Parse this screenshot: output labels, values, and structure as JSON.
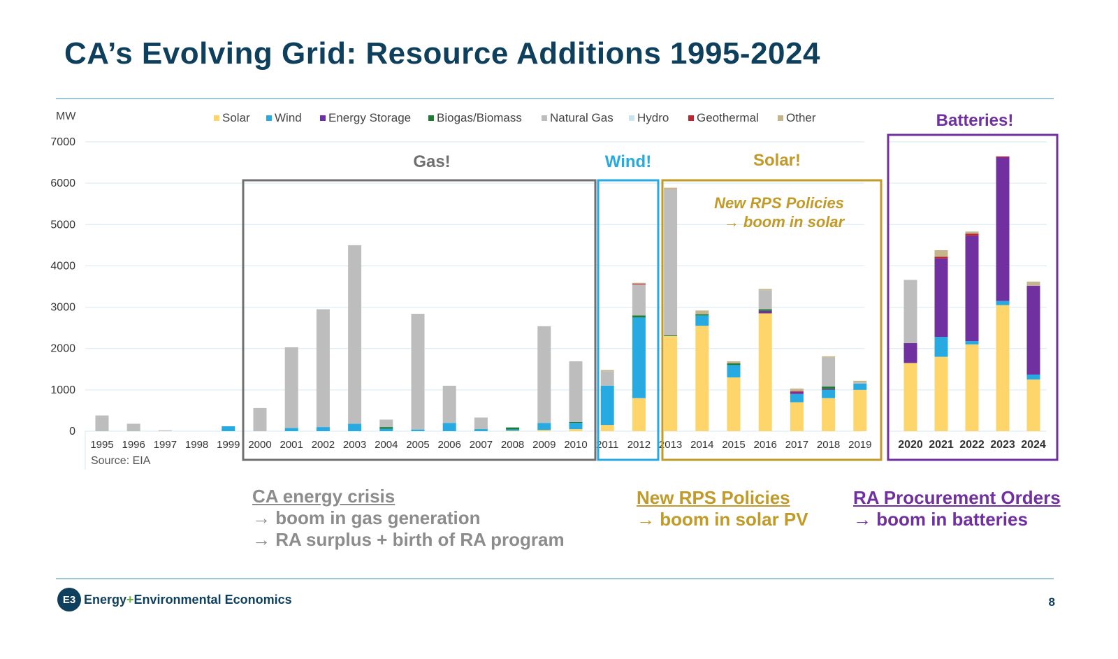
{
  "title": "CA’s Evolving Grid: Resource Additions 1995-2024",
  "footer": {
    "company_a": "Energy",
    "plus": "+",
    "company_b": "Environmental Economics",
    "logo_text": "E3",
    "page_number": "8"
  },
  "annotations": {
    "gas": {
      "head": "CA energy crisis",
      "line1": "→ boom in gas generation",
      "line2": "→ RA surplus + birth of RA program"
    },
    "solar": {
      "head": "New RPS Policies",
      "line1": "→ boom in solar PV"
    },
    "batteries": {
      "head": "RA Procurement Orders",
      "line1": "→ boom in batteries"
    }
  },
  "chart_data": {
    "type": "bar",
    "stacked": true,
    "title": "",
    "ylabel": "MW",
    "ylim": [
      0,
      7000
    ],
    "yticks": [
      0,
      1000,
      2000,
      3000,
      4000,
      5000,
      6000,
      7000
    ],
    "source": "Source: EIA",
    "categories": [
      "1995",
      "1996",
      "1997",
      "1998",
      "1999",
      "2000",
      "2001",
      "2002",
      "2003",
      "2004",
      "2005",
      "2006",
      "2007",
      "2008",
      "2009",
      "2010",
      "2011",
      "2012",
      "2013",
      "2014",
      "2015",
      "2016",
      "2017",
      "2018",
      "2019",
      "2020",
      "2021",
      "2022",
      "2023",
      "2024"
    ],
    "series": [
      {
        "name": "Solar",
        "color": "#fdd56b",
        "values": [
          0,
          0,
          0,
          0,
          0,
          0,
          0,
          0,
          0,
          0,
          0,
          0,
          0,
          10,
          30,
          50,
          150,
          800,
          2300,
          2550,
          1300,
          2850,
          700,
          800,
          1000,
          1650,
          1800,
          2100,
          3050,
          1250
        ]
      },
      {
        "name": "Wind",
        "color": "#27aae1",
        "values": [
          0,
          0,
          0,
          0,
          120,
          0,
          80,
          100,
          180,
          60,
          40,
          200,
          50,
          30,
          170,
          150,
          950,
          1950,
          0,
          250,
          300,
          0,
          200,
          200,
          150,
          0,
          480,
          80,
          100,
          120
        ]
      },
      {
        "name": "Energy Storage",
        "color": "#7030a0",
        "values": [
          0,
          0,
          0,
          0,
          0,
          0,
          0,
          0,
          0,
          0,
          0,
          0,
          0,
          0,
          0,
          0,
          0,
          0,
          0,
          0,
          0,
          60,
          50,
          20,
          0,
          480,
          1900,
          2550,
          3480,
          2150
        ]
      },
      {
        "name": "Biogas/Biomass",
        "color": "#1e7b34",
        "values": [
          0,
          0,
          0,
          0,
          0,
          0,
          0,
          0,
          0,
          40,
          0,
          0,
          0,
          50,
          0,
          20,
          0,
          50,
          20,
          30,
          40,
          40,
          0,
          60,
          0,
          0,
          0,
          0,
          0,
          0
        ]
      },
      {
        "name": "Natural Gas",
        "color": "#bdbdbd",
        "values": [
          380,
          180,
          20,
          0,
          0,
          560,
          1950,
          2850,
          4320,
          180,
          2800,
          900,
          280,
          0,
          2340,
          1470,
          350,
          750,
          3530,
          0,
          0,
          460,
          0,
          700,
          30,
          1530,
          0,
          0,
          0,
          0
        ]
      },
      {
        "name": "Hydro",
        "color": "#c9e6ee",
        "values": [
          0,
          0,
          0,
          0,
          0,
          0,
          0,
          0,
          0,
          0,
          0,
          0,
          0,
          0,
          0,
          0,
          0,
          0,
          0,
          0,
          0,
          0,
          0,
          0,
          0,
          0,
          0,
          0,
          0,
          0
        ]
      },
      {
        "name": "Geothermal",
        "color": "#c0262d",
        "values": [
          0,
          0,
          0,
          0,
          0,
          0,
          0,
          0,
          0,
          0,
          0,
          0,
          0,
          0,
          0,
          0,
          0,
          20,
          0,
          0,
          0,
          0,
          20,
          0,
          0,
          0,
          40,
          50,
          20,
          0
        ]
      },
      {
        "name": "Other",
        "color": "#c4b68c",
        "values": [
          0,
          0,
          0,
          0,
          0,
          0,
          0,
          0,
          0,
          0,
          0,
          0,
          0,
          0,
          0,
          0,
          30,
          20,
          40,
          90,
          50,
          30,
          60,
          30,
          40,
          0,
          160,
          50,
          0,
          100
        ]
      }
    ],
    "highlights": [
      {
        "label": "Gas!",
        "from": "2000",
        "to": "2010",
        "color": "#707070"
      },
      {
        "label": "Wind!",
        "from": "2011",
        "to": "2012",
        "color": "#27aae1"
      },
      {
        "label": "Solar!",
        "from": "2013",
        "to": "2019",
        "color": "#c29a27",
        "note_line1": "New RPS Policies",
        "note_line2": "→ boom in solar"
      },
      {
        "label": "Batteries!",
        "from": "2020",
        "to": "2024",
        "color": "#7030a0"
      }
    ]
  }
}
